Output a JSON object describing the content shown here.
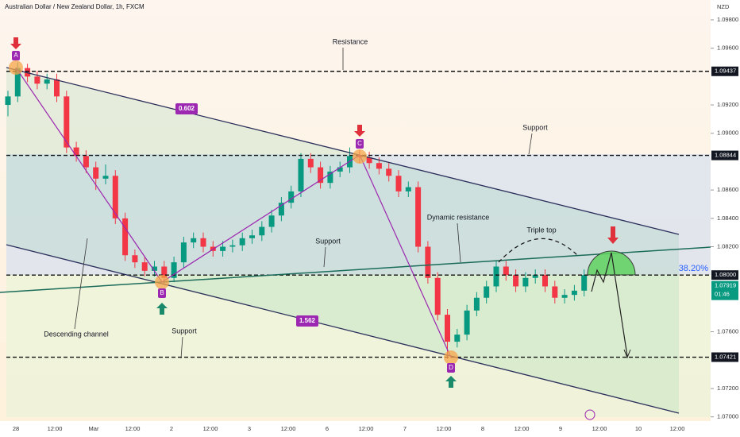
{
  "chart_data": {
    "type": "candlestick",
    "title": "Australian Dollar / New Zealand Dollar, 1h, FXCM",
    "currency": "NZD",
    "ylim": [
      1.0697,
      1.0994
    ],
    "yticks": [
      {
        "value": 1.098,
        "label": "1.09800"
      },
      {
        "value": 1.096,
        "label": "1.09600"
      },
      {
        "value": 1.092,
        "label": "1.09200"
      },
      {
        "value": 1.09,
        "label": "1.09000"
      },
      {
        "value": 1.086,
        "label": "1.08600"
      },
      {
        "value": 1.084,
        "label": "1.08400"
      },
      {
        "value": 1.082,
        "label": "1.08200"
      },
      {
        "value": 1.076,
        "label": "1.07600"
      },
      {
        "value": 1.072,
        "label": "1.07200"
      },
      {
        "value": 1.07,
        "label": "1.07000"
      }
    ],
    "x_labels": [
      "28",
      "12:00",
      "Mar",
      "12:00",
      "2",
      "12:00",
      "3",
      "12:00",
      "6",
      "12:00",
      "7",
      "12:00",
      "8",
      "12:00",
      "9",
      "12:00",
      "10",
      "12:00"
    ],
    "open": [
      1.092,
      1.0926,
      1.0946,
      1.094,
      1.0935,
      1.0938,
      1.0926,
      1.089,
      1.0884,
      1.0876,
      1.0868,
      1.087,
      1.084,
      1.0814,
      1.0809,
      1.0803,
      1.0806,
      1.0798,
      1.0809,
      1.0823,
      1.0826,
      1.082,
      1.0817,
      1.082,
      1.0821,
      1.0826,
      1.0828,
      1.0834,
      1.0842,
      1.0851,
      1.0859,
      1.0882,
      1.0876,
      1.0865,
      1.0873,
      1.0876,
      1.0884,
      1.0883,
      1.0879,
      1.0875,
      1.087,
      1.0859,
      1.0862,
      1.082,
      1.0798,
      1.0772,
      1.0753,
      1.0758,
      1.0775,
      1.0784,
      1.0792,
      1.0806,
      1.08,
      1.0792,
      1.0798,
      1.08,
      1.0792,
      1.0784,
      1.0786,
      1.0789
    ],
    "high": [
      1.093,
      1.095,
      1.0949,
      1.0944,
      1.0942,
      1.0942,
      1.093,
      1.0894,
      1.0888,
      1.088,
      1.0878,
      1.0874,
      1.0844,
      1.0818,
      1.0813,
      1.081,
      1.081,
      1.0813,
      1.0827,
      1.083,
      1.083,
      1.0824,
      1.0824,
      1.0825,
      1.083,
      1.0832,
      1.0838,
      1.0846,
      1.0855,
      1.0863,
      1.0886,
      1.0886,
      1.088,
      1.0877,
      1.088,
      1.089,
      1.0888,
      1.0887,
      1.0883,
      1.0879,
      1.0874,
      1.0866,
      1.0866,
      1.0824,
      1.0802,
      1.0776,
      1.0762,
      1.0779,
      1.0788,
      1.0796,
      1.081,
      1.081,
      1.0804,
      1.0802,
      1.0804,
      1.0804,
      1.0796,
      1.079,
      1.0793,
      1.0804
    ],
    "low": [
      1.0912,
      1.0922,
      1.0936,
      1.0931,
      1.0931,
      1.0922,
      1.0886,
      1.088,
      1.0872,
      1.086,
      1.0864,
      1.0836,
      1.081,
      1.0805,
      1.0799,
      1.0799,
      1.0794,
      1.0795,
      1.0805,
      1.0819,
      1.0816,
      1.0813,
      1.0813,
      1.0816,
      1.0817,
      1.0822,
      1.0824,
      1.083,
      1.0838,
      1.0847,
      1.0855,
      1.0872,
      1.0861,
      1.0861,
      1.0869,
      1.0872,
      1.0879,
      1.0875,
      1.0871,
      1.0866,
      1.0855,
      1.0855,
      1.0816,
      1.0794,
      1.0768,
      1.0741,
      1.0749,
      1.0754,
      1.0771,
      1.078,
      1.0788,
      1.0796,
      1.0788,
      1.0788,
      1.0794,
      1.0788,
      1.078,
      1.078,
      1.0782,
      1.0785
    ],
    "close": [
      1.0926,
      1.0946,
      1.094,
      1.0935,
      1.0938,
      1.0926,
      1.089,
      1.0884,
      1.0876,
      1.0868,
      1.087,
      1.084,
      1.0814,
      1.0809,
      1.0803,
      1.0806,
      1.0798,
      1.0809,
      1.0823,
      1.0826,
      1.082,
      1.0817,
      1.082,
      1.0821,
      1.0826,
      1.0828,
      1.0834,
      1.0842,
      1.0851,
      1.0859,
      1.0882,
      1.0876,
      1.0865,
      1.0873,
      1.0876,
      1.0884,
      1.0883,
      1.0879,
      1.0875,
      1.087,
      1.0859,
      1.0862,
      1.082,
      1.0798,
      1.0772,
      1.0753,
      1.0758,
      1.0775,
      1.0784,
      1.0792,
      1.0806,
      1.08,
      1.0792,
      1.0798,
      1.08,
      1.0792,
      1.0784,
      1.0786,
      1.0789,
      1.08
    ],
    "up_color": "#089981",
    "down_color": "#f23645",
    "levels": [
      1.09437,
      1.08844,
      {
        "value": 1.08,
        "label": "1.08000"
      },
      1.07421
    ],
    "last_price": 1.07919,
    "countdown": "01:46",
    "fib_label": "38.20%",
    "points": [
      "A",
      "B",
      "C",
      "D"
    ],
    "ratios": [
      0.602,
      1.562
    ],
    "annotations": [
      "Resistance",
      "Support",
      "Support",
      "Support",
      "Dynamic resistance",
      "Triple top",
      "Descending channel"
    ]
  }
}
